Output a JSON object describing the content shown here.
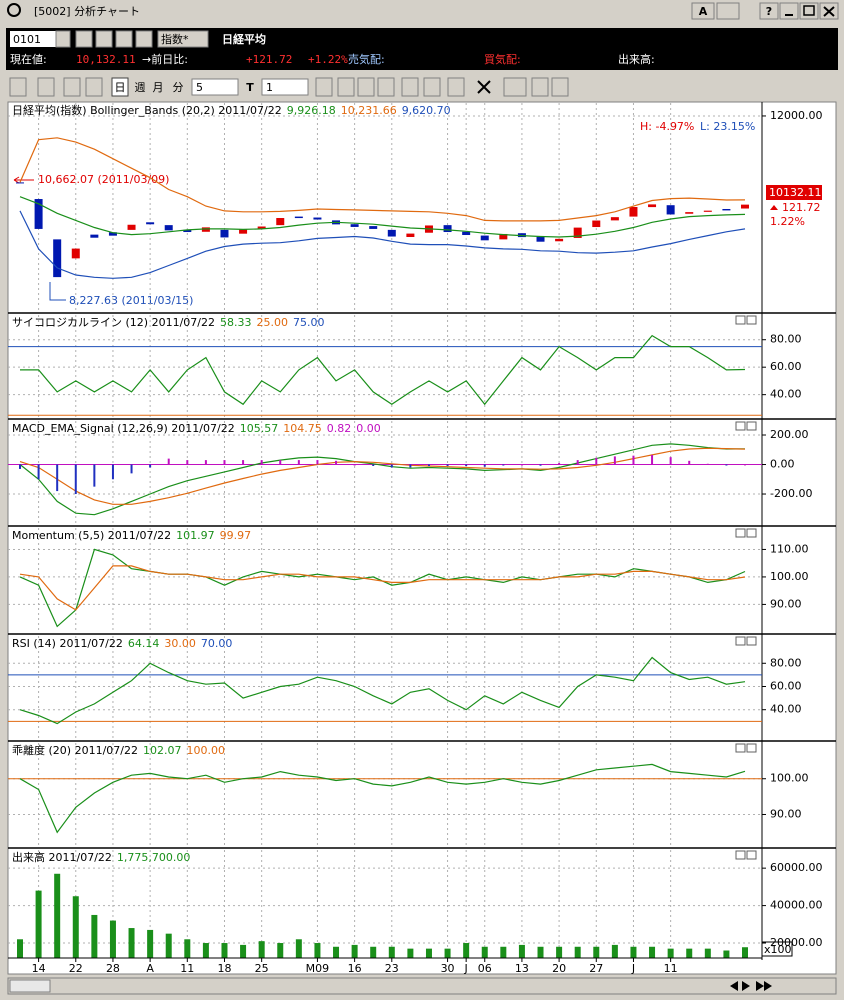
{
  "window": {
    "title": "[5002] 分析チャート",
    "buttons": [
      "A",
      "?"
    ]
  },
  "toolbar": {
    "code": "0101",
    "index": "指数*",
    "name": "日経平均"
  },
  "quote": {
    "price_label": "現在値:",
    "price": "10,132.11",
    "change_label": "→前日比:",
    "change": "+121.72",
    "change_pct": "+1.22%",
    "ask_label": "売気配:",
    "bid_label": "買気配:",
    "volume_label": "出来高:"
  },
  "periods": {
    "items": [
      "日",
      "週",
      "月",
      "分"
    ],
    "minutes": "5",
    "t": "T",
    "t_value": "1"
  },
  "volume_unit": "x100",
  "chart_data": [
    {
      "type": "candlestick",
      "title": "日経平均(指数) Bollinger_Bands (20,2) 2011/07/22",
      "open": [
        10600,
        10250,
        9400,
        9000,
        9500,
        9550,
        9600,
        9760,
        9700,
        9600,
        9560,
        9600,
        9520,
        9620,
        9700,
        9880,
        9860,
        9800,
        9720,
        9680,
        9600,
        9450,
        9540,
        9700,
        9560,
        9480,
        9400,
        9530,
        9450,
        9360,
        9430,
        9660,
        9800,
        9880,
        10080,
        10120,
        9940,
        9980,
        10040,
        10050
      ],
      "close": [
        10589,
        9620,
        8605,
        9206,
        9435,
        9478,
        9708,
        9718,
        9590,
        9555,
        9653,
        9441,
        9606,
        9671,
        9850,
        9849,
        9818,
        9716,
        9662,
        9620,
        9460,
        9522,
        9693,
        9555,
        9492,
        9380,
        9514,
        9448,
        9351,
        9411,
        9648,
        9797,
        9868,
        10082,
        10137,
        9925,
        9974,
        10005,
        10010,
        10132
      ],
      "up_color": "#e00000",
      "down_color": "#0018b0",
      "series": [
        {
          "color": "#1a8f1a",
          "legend": "9,926.18",
          "values": [
            10300,
            10150,
            9950,
            9800,
            9650,
            9540,
            9500,
            9520,
            9560,
            9600,
            9620,
            9620,
            9610,
            9620,
            9650,
            9700,
            9740,
            9760,
            9740,
            9720,
            9680,
            9640,
            9620,
            9600,
            9570,
            9530,
            9500,
            9480,
            9460,
            9450,
            9470,
            9510,
            9570,
            9650,
            9760,
            9830,
            9880,
            9900,
            9915,
            9926
          ]
        },
        {
          "color": "#e06a10",
          "legend": "10,231.66",
          "values": [
            10600,
            11500,
            11540,
            11450,
            11300,
            11100,
            10900,
            10700,
            10450,
            10300,
            10100,
            10000,
            9980,
            9980,
            9990,
            10010,
            10040,
            10030,
            10020,
            10010,
            10000,
            9990,
            9980,
            9950,
            9900,
            9800,
            9790,
            9790,
            9790,
            9800,
            9850,
            9900,
            9980,
            10100,
            10220,
            10260,
            10270,
            10250,
            10230,
            10232
          ]
        },
        {
          "color": "#1f4fb8",
          "legend": "9,620.70",
          "values": [
            10000,
            9200,
            8800,
            8650,
            8600,
            8580,
            8600,
            8700,
            8850,
            9000,
            9150,
            9250,
            9300,
            9320,
            9330,
            9370,
            9420,
            9440,
            9460,
            9430,
            9360,
            9300,
            9290,
            9290,
            9260,
            9220,
            9200,
            9190,
            9160,
            9150,
            9120,
            9110,
            9130,
            9160,
            9240,
            9310,
            9400,
            9480,
            9560,
            9621
          ]
        }
      ],
      "ylim": [
        7870,
        12273
      ],
      "yticks": [
        {
          "value": 12000,
          "label": "12000.00"
        }
      ],
      "high_label": "H: -4.97%",
      "low_label": "L: 23.15%",
      "high_note": "10,662.07 (2011/03/09)",
      "low_note": "8,227.63 (2011/03/15)",
      "last_price": "10132.11",
      "last_change": "121.72",
      "last_change_pct": "1.22%"
    },
    {
      "type": "line",
      "title": "サイコロジカルライン (12) 2011/07/22",
      "series": [
        {
          "color": "#1a8f1a",
          "legend": "58.33",
          "values": [
            58,
            58,
            42,
            50,
            42,
            50,
            42,
            58,
            42,
            58,
            67,
            42,
            33,
            50,
            42,
            58,
            67,
            50,
            58,
            42,
            33,
            42,
            50,
            42,
            50,
            33,
            50,
            67,
            58,
            75,
            67,
            58,
            67,
            67,
            83,
            75,
            75,
            67,
            58,
            58.33
          ]
        }
      ],
      "levels": [
        {
          "value": 25,
          "label": "25.00",
          "color": "#e06a10"
        },
        {
          "value": 75,
          "label": "75.00",
          "color": "#1f4fb8"
        }
      ],
      "ylim": [
        23,
        98
      ],
      "yticks": [
        {
          "value": 80,
          "label": "80.00"
        },
        {
          "value": 60,
          "label": "60.00"
        },
        {
          "value": 40,
          "label": "40.00"
        }
      ]
    },
    {
      "type": "line",
      "title": "MACD_EMA_Signal (12,26,9) 2011/07/22",
      "series": [
        {
          "color": "#1a8f1a",
          "legend": "105.57",
          "values": [
            0,
            -100,
            -250,
            -330,
            -340,
            -300,
            -250,
            -200,
            -150,
            -110,
            -80,
            -50,
            -20,
            10,
            30,
            45,
            50,
            40,
            20,
            5,
            -15,
            -25,
            -20,
            -25,
            -30,
            -40,
            -35,
            -30,
            -40,
            -20,
            10,
            40,
            70,
            100,
            130,
            140,
            130,
            115,
            105,
            105.57
          ]
        },
        {
          "color": "#e06a10",
          "legend": "104.75",
          "values": [
            20,
            -20,
            -100,
            -180,
            -240,
            -270,
            -270,
            -250,
            -225,
            -195,
            -160,
            -125,
            -95,
            -65,
            -40,
            -20,
            0,
            15,
            20,
            15,
            5,
            -5,
            -10,
            -15,
            -20,
            -25,
            -30,
            -30,
            -32,
            -30,
            -20,
            -5,
            15,
            40,
            65,
            90,
            105,
            110,
            108,
            104.75
          ]
        },
        {
          "color": "#c010c0",
          "negative_color": "#2030c0",
          "style": "bar",
          "legend": "0.82",
          "values": [
            -30,
            -100,
            -180,
            -200,
            -150,
            -100,
            -60,
            -20,
            40,
            30,
            30,
            30,
            30,
            30,
            30,
            30,
            30,
            25,
            0,
            -10,
            -20,
            -20,
            -10,
            -10,
            -10,
            -15,
            -5,
            0,
            -8,
            10,
            30,
            45,
            55,
            60,
            65,
            50,
            25,
            5,
            -3,
            0.82
          ]
        }
      ],
      "levels": [
        {
          "value": 0,
          "label": "0.00",
          "color": "#c010c0"
        }
      ],
      "ylim": [
        -410,
        295
      ],
      "yticks": [
        {
          "value": 200,
          "label": "200.00"
        },
        {
          "value": 0,
          "label": "0.00"
        },
        {
          "value": -200,
          "label": "-200.00"
        }
      ]
    },
    {
      "type": "line",
      "title": "Momentum (5,5) 2011/07/22",
      "series": [
        {
          "color": "#1a8f1a",
          "legend": "101.97",
          "values": [
            100,
            97,
            82,
            88,
            110,
            108,
            103,
            102,
            101,
            101,
            100,
            97,
            100,
            102,
            101,
            100,
            101,
            100,
            99,
            100,
            97,
            98,
            101,
            99,
            100,
            99,
            98,
            100,
            99,
            100,
            101,
            101,
            100,
            103,
            102,
            101,
            100,
            98,
            99,
            101.97
          ]
        },
        {
          "color": "#e06a10",
          "legend": "99.97",
          "values": [
            101,
            100,
            92,
            88,
            96,
            104,
            104,
            102,
            101,
            101,
            100,
            99,
            99,
            100,
            101,
            101,
            100,
            100,
            100,
            99,
            98,
            98,
            99,
            99,
            99,
            99,
            99,
            99,
            99,
            100,
            100,
            101,
            101,
            102,
            102,
            101,
            100,
            99,
            99,
            99.97
          ]
        }
      ],
      "ylim": [
        79.6,
        117.8
      ],
      "yticks": [
        {
          "value": 110,
          "label": "110.00"
        },
        {
          "value": 100,
          "label": "100.00"
        },
        {
          "value": 90,
          "label": "90.00"
        }
      ]
    },
    {
      "type": "line",
      "title": "RSI (14) 2011/07/22",
      "series": [
        {
          "color": "#1a8f1a",
          "legend": "64.14",
          "values": [
            40,
            35,
            28,
            38,
            45,
            55,
            65,
            80,
            72,
            65,
            62,
            63,
            50,
            55,
            60,
            62,
            68,
            65,
            60,
            52,
            45,
            55,
            58,
            48,
            40,
            52,
            45,
            55,
            48,
            42,
            60,
            70,
            68,
            65,
            85,
            72,
            66,
            68,
            62,
            64.14
          ]
        }
      ],
      "levels": [
        {
          "value": 30,
          "label": "30.00",
          "color": "#e06a10"
        },
        {
          "value": 70,
          "label": "70.00",
          "color": "#1f4fb8"
        }
      ],
      "ylim": [
        13.9,
        103.5
      ],
      "yticks": [
        {
          "value": 80,
          "label": "80.00"
        },
        {
          "value": 60,
          "label": "60.00"
        },
        {
          "value": 40,
          "label": "40.00"
        }
      ]
    },
    {
      "type": "line",
      "title": "乖離度 (20) 2011/07/22",
      "series": [
        {
          "color": "#1a8f1a",
          "legend": "102.07",
          "values": [
            100,
            97,
            85,
            92,
            96,
            99,
            101,
            101.5,
            100.5,
            100,
            101,
            99,
            100,
            100.5,
            102,
            101,
            100.5,
            99.5,
            100,
            98.5,
            98,
            99,
            100.5,
            99,
            98.5,
            99,
            100,
            99,
            98.5,
            99.5,
            101,
            102.5,
            103,
            103.5,
            104,
            102,
            101.5,
            101,
            100.5,
            102.07
          ]
        }
      ],
      "levels": [
        {
          "value": 100,
          "label": "100.00",
          "color": "#e06a10"
        }
      ],
      "ylim": [
        80.9,
        110
      ],
      "yticks": [
        {
          "value": 100,
          "label": "100.00"
        },
        {
          "value": 90,
          "label": "90.00"
        }
      ]
    },
    {
      "type": "bar",
      "title": "出来高 2011/07/22",
      "categories": [
        null,
        "14",
        null,
        "22",
        null,
        "28",
        null,
        "A",
        null,
        "11",
        null,
        "18",
        null,
        "25",
        null,
        null,
        "M09",
        null,
        "16",
        null,
        "23",
        null,
        null,
        "30",
        "J",
        "06",
        null,
        "13",
        null,
        "20",
        null,
        "27",
        null,
        "J",
        null,
        "11",
        null,
        null,
        null,
        null
      ],
      "series": [
        {
          "color": "#1a8f1a",
          "legend": "1,775,700.00",
          "values": [
            22000,
            48000,
            57000,
            45000,
            35000,
            32000,
            28000,
            27000,
            25000,
            22000,
            20000,
            20000,
            19000,
            21000,
            20000,
            22000,
            20000,
            18000,
            19000,
            18000,
            18000,
            17000,
            17000,
            17000,
            20000,
            18000,
            18000,
            19000,
            18000,
            18000,
            18000,
            18000,
            19000,
            18000,
            18000,
            17000,
            17000,
            17000,
            16000,
            17757
          ]
        }
      ],
      "ylim": [
        12000,
        69700
      ],
      "yticks": [
        {
          "value": 60000,
          "label": "60000.00"
        },
        {
          "value": 40000,
          "label": "40000.00"
        },
        {
          "value": 20000,
          "label": "20000.00"
        }
      ]
    }
  ]
}
